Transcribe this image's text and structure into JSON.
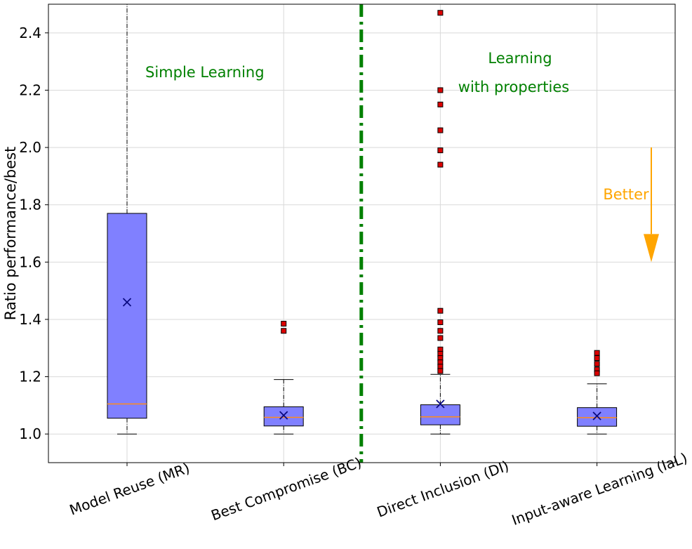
{
  "chart_data": {
    "type": "box",
    "title": "",
    "xlabel": "",
    "ylabel": "Ratio performance/best",
    "ylim": [
      0.9,
      2.5
    ],
    "yticks": [
      "1.0",
      "1.2",
      "1.4",
      "1.6",
      "1.8",
      "2.0",
      "2.2",
      "2.4"
    ],
    "grid": true,
    "categories": [
      "Model Reuse (MR)",
      "Best Compromise (BC)",
      "Direct Inclusion (DI)",
      "Input-aware Learning (IaL)"
    ],
    "boxes": [
      {
        "q1": 1.055,
        "median": 1.105,
        "q3": 1.77,
        "whisker_low": 1.0,
        "whisker_high": 2.5,
        "mean": 1.46,
        "outliers": []
      },
      {
        "q1": 1.028,
        "median": 1.058,
        "q3": 1.095,
        "whisker_low": 1.0,
        "whisker_high": 1.19,
        "mean": 1.065,
        "outliers": [
          1.36,
          1.385
        ]
      },
      {
        "q1": 1.032,
        "median": 1.06,
        "q3": 1.102,
        "whisker_low": 1.0,
        "whisker_high": 1.208,
        "mean": 1.105,
        "outliers": [
          2.47,
          2.2,
          2.15,
          2.06,
          1.99,
          1.94,
          1.43,
          1.39,
          1.36,
          1.335,
          1.295,
          1.28,
          1.265,
          1.25,
          1.235,
          1.22
        ]
      },
      {
        "q1": 1.027,
        "median": 1.057,
        "q3": 1.092,
        "whisker_low": 1.0,
        "whisker_high": 1.175,
        "mean": 1.063,
        "outliers": [
          1.283,
          1.265,
          1.245,
          1.225,
          1.212
        ]
      }
    ],
    "divider_after_category": 1,
    "annotations": {
      "left_group": "Simple Learning",
      "right_group_line1": "Learning",
      "right_group_line2": "with properties",
      "arrow_label": "Better",
      "arrow_from": 2.0,
      "arrow_to": 1.6
    },
    "colors": {
      "box_fill": "#8080ff",
      "median": "#ff8c1a",
      "outlier": "#dd0000",
      "mean_marker": "#0a0a80",
      "divider": "#008000",
      "group_text": "#008000",
      "arrow": "#ffa500",
      "grid": "#d9d9d9"
    }
  }
}
